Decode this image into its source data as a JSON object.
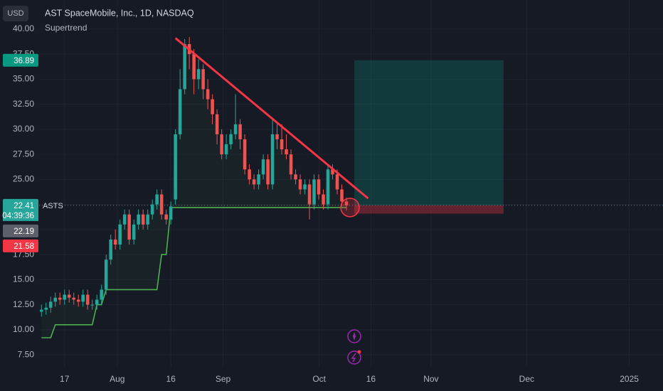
{
  "chart_data": {
    "type": "candlestick",
    "currency": "USD",
    "title": "AST SpaceMobile, Inc., 1D, NASDAQ",
    "symbol": "ASTS",
    "up_color": "#26a69a",
    "down_color": "#ef5350",
    "xlim": [
      -0.5,
      134.5
    ],
    "ylim": [
      6.3,
      42.9
    ],
    "xticks": [
      {
        "value": 5,
        "label": "17"
      },
      {
        "value": 16.4,
        "label": "Aug"
      },
      {
        "value": 28,
        "label": "16"
      },
      {
        "value": 39.3,
        "label": "Sep"
      },
      {
        "value": 60.1,
        "label": "Oct"
      },
      {
        "value": 71.3,
        "label": "16"
      },
      {
        "value": 84.3,
        "label": "Nov"
      },
      {
        "value": 105,
        "label": "Dec"
      },
      {
        "value": 127.2,
        "label": "2025"
      }
    ],
    "yticks": [
      {
        "value": 7.5,
        "label": "7.50"
      },
      {
        "value": 10,
        "label": "10.00"
      },
      {
        "value": 12.5,
        "label": "12.50"
      },
      {
        "value": 15,
        "label": "15.00"
      },
      {
        "value": 17.5,
        "label": "17.50"
      },
      {
        "value": 20,
        "label": "20.00"
      },
      {
        "value": 22.5,
        "label": "22.50"
      },
      {
        "value": 25,
        "label": "25.00"
      },
      {
        "value": 27.5,
        "label": "27.50"
      },
      {
        "value": 30,
        "label": "30.00"
      },
      {
        "value": 32.5,
        "label": "32.50"
      },
      {
        "value": 35,
        "label": "35.00"
      },
      {
        "value": 37.5,
        "label": "37.50"
      },
      {
        "value": 40,
        "label": "40.00"
      }
    ],
    "open": [
      11.8,
      12.0,
      12.2,
      12.8,
      13.2,
      13.0,
      13.5,
      13.2,
      13.0,
      12.8,
      13.5,
      12.5,
      12.5,
      13.0,
      14.0,
      17.0,
      19.0,
      18.5,
      20.5,
      21.5,
      19.0,
      20.5,
      21.5,
      20.5,
      21.5,
      22.5,
      23.5,
      21.5,
      21.0,
      23.0,
      29.5,
      34.0,
      38.5,
      37.5,
      35.0,
      36.0,
      34.0,
      33.0,
      31.5,
      29.5,
      27.5,
      28.5,
      29.5,
      30.5,
      29.0,
      26.0,
      25.0,
      24.5,
      25.5,
      27.0,
      24.5,
      29.5,
      29.0,
      28.0,
      27.5,
      25.5,
      25.0,
      24.0,
      24.5,
      22.5,
      25.0,
      23.5,
      22.5,
      26.0,
      25.5,
      24.0,
      22.8
    ],
    "high": [
      12.5,
      12.7,
      13.3,
      13.7,
      13.7,
      14.0,
      14.0,
      13.7,
      13.5,
      14.0,
      14.0,
      13.0,
      13.5,
      14.5,
      17.5,
      19.5,
      20.0,
      21.0,
      22.0,
      22.0,
      21.0,
      22.0,
      22.0,
      22.0,
      23.0,
      24.0,
      24.0,
      22.0,
      22.8,
      30.0,
      36.0,
      39.0,
      39.2,
      38.0,
      37.0,
      36.5,
      35.0,
      33.5,
      32.0,
      30.0,
      29.5,
      30.0,
      33.5,
      31.0,
      29.5,
      26.5,
      25.5,
      26.0,
      27.5,
      27.5,
      31.0,
      30.5,
      30.5,
      29.5,
      28.0,
      26.0,
      25.5,
      25.0,
      25.0,
      25.5,
      25.5,
      24.0,
      26.5,
      26.5,
      26.0,
      24.5,
      23.2
    ],
    "low": [
      11.3,
      11.5,
      11.7,
      12.3,
      12.5,
      12.5,
      12.7,
      12.5,
      12.3,
      12.3,
      12.0,
      12.0,
      12.0,
      12.5,
      13.5,
      16.5,
      18.0,
      18.0,
      20.0,
      18.5,
      18.5,
      20.0,
      20.0,
      20.0,
      21.0,
      22.0,
      21.0,
      20.5,
      20.5,
      22.5,
      29.0,
      33.5,
      36.0,
      33.5,
      34.0,
      33.0,
      32.0,
      30.5,
      28.5,
      27.0,
      27.0,
      28.0,
      29.0,
      28.0,
      25.5,
      24.5,
      24.0,
      24.0,
      25.0,
      24.0,
      24.0,
      28.0,
      27.5,
      27.0,
      25.0,
      24.5,
      23.5,
      23.5,
      21.0,
      22.0,
      23.0,
      22.0,
      22.0,
      25.0,
      23.5,
      22.3,
      21.9
    ],
    "close": [
      12.0,
      12.2,
      12.8,
      13.2,
      13.0,
      13.5,
      13.2,
      13.0,
      12.8,
      13.5,
      12.5,
      12.5,
      13.0,
      14.0,
      17.0,
      19.0,
      18.5,
      20.5,
      21.5,
      19.0,
      20.5,
      21.5,
      20.5,
      21.5,
      22.5,
      23.5,
      21.5,
      21.0,
      22.3,
      29.5,
      34.0,
      38.5,
      37.5,
      35.0,
      36.0,
      34.0,
      33.0,
      31.5,
      29.5,
      27.5,
      28.5,
      29.5,
      30.5,
      29.0,
      26.0,
      25.0,
      24.5,
      25.5,
      27.0,
      24.5,
      29.5,
      29.0,
      28.0,
      27.5,
      25.5,
      25.0,
      24.0,
      24.5,
      22.5,
      25.0,
      23.5,
      22.5,
      26.0,
      25.5,
      24.0,
      22.8,
      22.41
    ],
    "series": [
      {
        "name": "Supertrend",
        "color": "#4caf50",
        "values": [
          9.2,
          9.2,
          9.2,
          10.5,
          10.5,
          10.5,
          10.5,
          10.5,
          10.5,
          10.5,
          10.5,
          10.5,
          12.5,
          12.5,
          14.0,
          14.0,
          14.0,
          14.0,
          14.0,
          14.0,
          14.0,
          14.0,
          14.0,
          14.0,
          14.0,
          14.0,
          17.5,
          17.5,
          22.19,
          22.19,
          22.19,
          22.19,
          22.19,
          22.19,
          22.19,
          22.19,
          22.19,
          22.19,
          22.19,
          22.19,
          22.19,
          22.19,
          22.19,
          22.19,
          22.19,
          22.19,
          22.19,
          22.19,
          22.19,
          22.19,
          22.19,
          22.19,
          22.19,
          22.19,
          22.19,
          22.19,
          22.19,
          22.19,
          22.19,
          22.19,
          22.19,
          22.19,
          22.19,
          22.19,
          22.19,
          22.19,
          22.19
        ]
      }
    ],
    "trendline": {
      "color": "#f23645",
      "x": [
        29,
        70.7
      ],
      "y": [
        39.1,
        23.1
      ]
    },
    "position": {
      "x": [
        67.7,
        100
      ],
      "entry": 22.41,
      "target": 36.89,
      "stop": 21.58
    },
    "price_badges": [
      {
        "value": 36.89,
        "label": "36.89",
        "color": "#089981"
      },
      {
        "value": 22.41,
        "label": "22.41",
        "color": "#26a69a",
        "countdown": "04:39:36"
      },
      {
        "value": 22.19,
        "label": "22.19",
        "color": "#5d606b"
      },
      {
        "value": 21.58,
        "label": "21.58",
        "color": "#f23645"
      }
    ]
  }
}
